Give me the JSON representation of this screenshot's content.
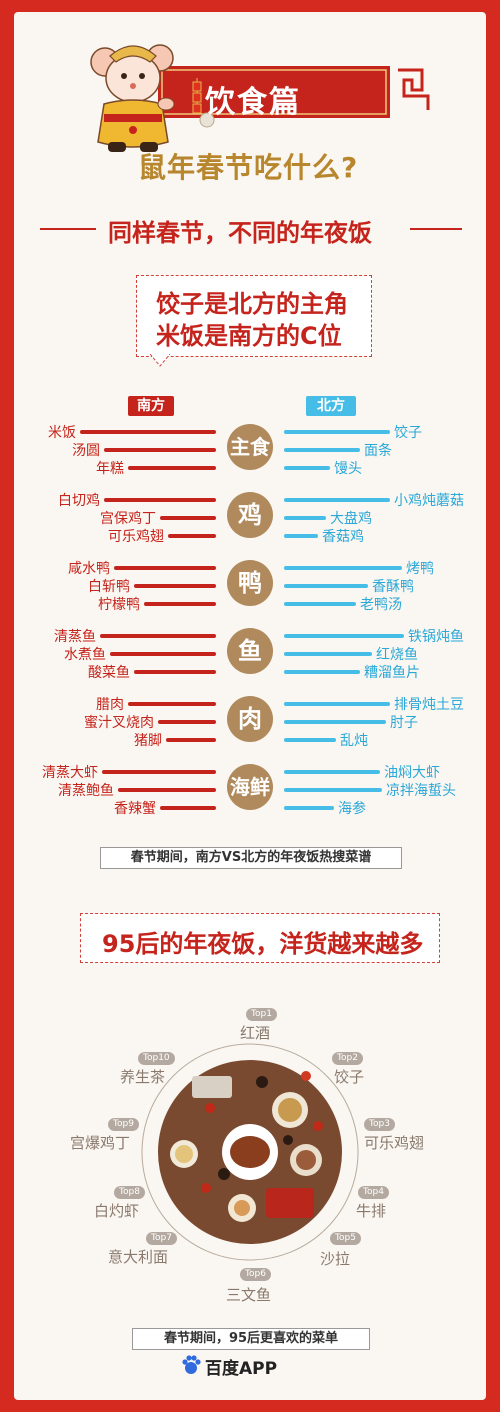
{
  "header": {
    "title": "饮食篇",
    "subtitle": "鼠年春节吃什么?"
  },
  "section1": {
    "title": "同样春节，不同的年夜饭",
    "callout_lines": [
      "饺子是北方的主角",
      "米饭是南方的C位"
    ],
    "south_tag": "南方",
    "north_tag": "北方",
    "colors": {
      "south": "#c5241c",
      "north": "#45bde6",
      "circle": "#b08a5c"
    },
    "categories": [
      {
        "label": "主食",
        "south": [
          "米饭",
          "汤圆",
          "年糕"
        ],
        "north": [
          "饺子",
          "面条",
          "馒头"
        ]
      },
      {
        "label": "鸡",
        "south": [
          "白切鸡",
          "宫保鸡丁",
          "可乐鸡翅"
        ],
        "north": [
          "小鸡炖蘑菇",
          "大盘鸡",
          "香菇鸡"
        ]
      },
      {
        "label": "鸭",
        "south": [
          "咸水鸭",
          "白斩鸭",
          "柠檬鸭"
        ],
        "north": [
          "烤鸭",
          "香酥鸭",
          "老鸭汤"
        ]
      },
      {
        "label": "鱼",
        "south": [
          "清蒸鱼",
          "水煮鱼",
          "酸菜鱼"
        ],
        "north": [
          "铁锅炖鱼",
          "红烧鱼",
          "糟溜鱼片"
        ]
      },
      {
        "label": "肉",
        "south": [
          "腊肉",
          "蜜汁叉烧肉",
          "猪脚"
        ],
        "north": [
          "排骨炖土豆",
          "肘子",
          "乱炖"
        ]
      },
      {
        "label": "海鲜",
        "south": [
          "清蒸大虾",
          "清蒸鲍鱼",
          "香辣蟹"
        ],
        "north": [
          "油焖大虾",
          "凉拌海蜇头",
          "海参"
        ]
      }
    ],
    "caption": "春节期间，南方VS北方的年夜饭热搜菜谱"
  },
  "section2": {
    "title": "95后的年夜饭，洋货越来越多",
    "ranking": [
      {
        "rank": "Top1",
        "name": "红酒"
      },
      {
        "rank": "Top2",
        "name": "饺子"
      },
      {
        "rank": "Top3",
        "name": "可乐鸡翅"
      },
      {
        "rank": "Top4",
        "name": "牛排"
      },
      {
        "rank": "Top5",
        "name": "沙拉"
      },
      {
        "rank": "Top6",
        "name": "三文鱼"
      },
      {
        "rank": "Top7",
        "name": "意大利面"
      },
      {
        "rank": "Top8",
        "name": "白灼虾"
      },
      {
        "rank": "Top9",
        "name": "宫爆鸡丁"
      },
      {
        "rank": "Top10",
        "name": "养生茶"
      }
    ],
    "caption": "春节期间，95后更喜欢的菜单"
  },
  "footer": {
    "brand": "百度APP",
    "logo_icon": "baidu-paw-icon"
  },
  "icons": {
    "mascot": "rat-mascot-icon",
    "firecracker": "firecracker-icon",
    "table": "dinner-table-illustration"
  }
}
